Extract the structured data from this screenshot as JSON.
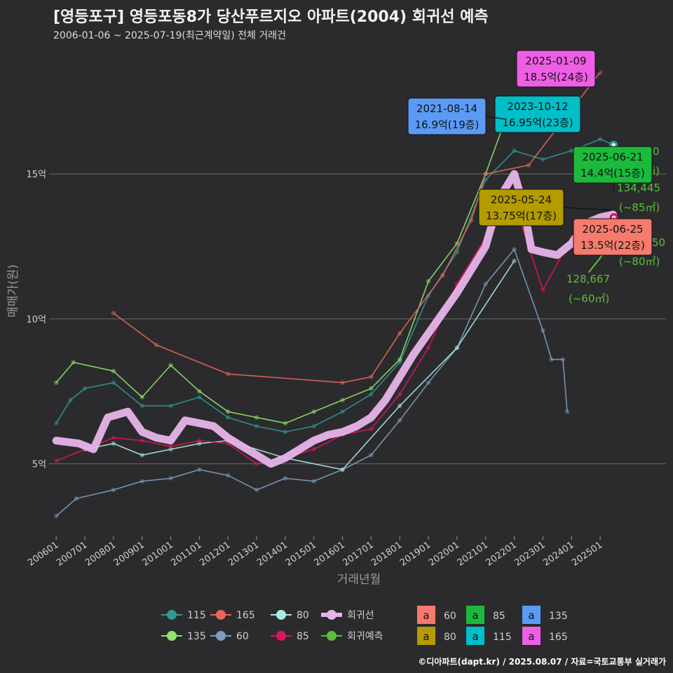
{
  "header": {
    "title": "[영등포구] 영등포동8가 당산푸르지오 아파트(2004) 회귀선 예측",
    "subtitle": "2006-01-06 ~ 2025-07-19(최근계약일) 전체 거래건"
  },
  "caption": "©디아파트(dapt.kr) / 2025.08.07 / 자료=국토교통부 실거래가",
  "colors": {
    "s115": "#2e9a92",
    "s135": "#8fe36e",
    "s165": "#e8675a",
    "s60": "#7f9cc2",
    "s80": "#a8ebe4",
    "s85": "#e0135f",
    "trend": "#e7b4ea",
    "pred": "#5bbf3a"
  },
  "chart_data": {
    "type": "line",
    "xlabel": "거래년월",
    "ylabel": "매매가(원)",
    "x_ticks": [
      "200601",
      "200701",
      "200801",
      "200901",
      "201001",
      "201101",
      "201201",
      "201301",
      "201401",
      "201501",
      "201601",
      "201701",
      "201801",
      "201901",
      "202001",
      "202101",
      "202201",
      "202301",
      "202401",
      "202501"
    ],
    "y_ticks": [
      {
        "value": 5,
        "label": "5억"
      },
      {
        "value": 10,
        "label": "10억"
      },
      {
        "value": 15,
        "label": "15억"
      }
    ],
    "xlim": [
      2005.75,
      2027.3
    ],
    "ylim": [
      2.5,
      19.5
    ],
    "grid": true,
    "series": [
      {
        "name": "115",
        "color_key": "s115",
        "points": [
          [
            2006.0,
            6.4
          ],
          [
            2006.5,
            7.2
          ],
          [
            2007.0,
            7.6
          ],
          [
            2008.0,
            7.8
          ],
          [
            2009.0,
            7.0
          ],
          [
            2010.0,
            7.0
          ],
          [
            2011.0,
            7.3
          ],
          [
            2012.0,
            6.6
          ],
          [
            2013.0,
            6.3
          ],
          [
            2014.0,
            6.1
          ],
          [
            2015.0,
            6.3
          ],
          [
            2016.0,
            6.8
          ],
          [
            2017.0,
            7.4
          ],
          [
            2018.0,
            8.5
          ],
          [
            2019.0,
            10.8
          ],
          [
            2020.0,
            12.3
          ],
          [
            2021.0,
            14.8
          ],
          [
            2022.0,
            15.8
          ],
          [
            2023.0,
            15.5
          ],
          [
            2024.0,
            15.8
          ],
          [
            2025.0,
            16.2
          ],
          [
            2025.47,
            16.0
          ]
        ]
      },
      {
        "name": "135",
        "color_key": "s135",
        "points": [
          [
            2006.0,
            7.8
          ],
          [
            2006.6,
            8.5
          ],
          [
            2008.0,
            8.2
          ],
          [
            2009.0,
            7.3
          ],
          [
            2010.0,
            8.4
          ],
          [
            2011.0,
            7.5
          ],
          [
            2012.0,
            6.8
          ],
          [
            2013.0,
            6.6
          ],
          [
            2014.0,
            6.4
          ],
          [
            2015.0,
            6.8
          ],
          [
            2016.0,
            7.2
          ],
          [
            2017.0,
            7.6
          ],
          [
            2018.0,
            8.6
          ],
          [
            2019.0,
            11.3
          ],
          [
            2020.0,
            12.6
          ],
          [
            2021.0,
            15.0
          ],
          [
            2021.7,
            16.9
          ]
        ]
      },
      {
        "name": "165",
        "color_key": "s165",
        "points": [
          [
            2008.0,
            10.2
          ],
          [
            2009.5,
            9.1
          ],
          [
            2012.0,
            8.1
          ],
          [
            2016.0,
            7.8
          ],
          [
            2017.0,
            8.0
          ],
          [
            2018.0,
            9.5
          ],
          [
            2019.5,
            11.5
          ],
          [
            2020.5,
            13.4
          ],
          [
            2021.0,
            15.0
          ],
          [
            2022.5,
            15.3
          ],
          [
            2025.0,
            18.5
          ]
        ]
      },
      {
        "name": "60",
        "color_key": "s60",
        "points": [
          [
            2006.0,
            3.2
          ],
          [
            2006.7,
            3.8
          ],
          [
            2008.0,
            4.1
          ],
          [
            2009.0,
            4.4
          ],
          [
            2010.0,
            4.5
          ],
          [
            2011.0,
            4.8
          ],
          [
            2012.0,
            4.6
          ],
          [
            2013.0,
            4.1
          ],
          [
            2014.0,
            4.5
          ],
          [
            2015.0,
            4.4
          ],
          [
            2016.0,
            4.8
          ],
          [
            2017.0,
            5.3
          ],
          [
            2018.0,
            6.5
          ],
          [
            2019.0,
            7.8
          ],
          [
            2020.0,
            9.0
          ],
          [
            2021.0,
            11.2
          ],
          [
            2022.0,
            12.4
          ],
          [
            2023.0,
            9.6
          ],
          [
            2023.3,
            8.6
          ],
          [
            2023.7,
            8.6
          ],
          [
            2023.85,
            6.8
          ]
        ]
      },
      {
        "name": "80",
        "color_key": "s80",
        "points": [
          [
            2007.0,
            5.5
          ],
          [
            2008.0,
            5.7
          ],
          [
            2009.0,
            5.3
          ],
          [
            2010.0,
            5.5
          ],
          [
            2011.0,
            5.7
          ],
          [
            2012.0,
            5.8
          ],
          [
            2014.0,
            5.2
          ],
          [
            2016.0,
            4.8
          ],
          [
            2018.0,
            7.0
          ],
          [
            2020.0,
            9.0
          ],
          [
            2022.0,
            12.0
          ]
        ]
      },
      {
        "name": "85",
        "color_key": "s85",
        "points": [
          [
            2006.0,
            5.1
          ],
          [
            2008.0,
            5.9
          ],
          [
            2009.0,
            5.8
          ],
          [
            2010.0,
            5.6
          ],
          [
            2011.0,
            5.8
          ],
          [
            2012.0,
            5.7
          ],
          [
            2013.0,
            5.0
          ],
          [
            2014.0,
            5.2
          ],
          [
            2015.0,
            5.5
          ],
          [
            2016.0,
            6.0
          ],
          [
            2017.0,
            6.2
          ],
          [
            2018.0,
            7.4
          ],
          [
            2019.0,
            9.0
          ],
          [
            2020.0,
            11.2
          ],
          [
            2021.0,
            12.8
          ],
          [
            2022.0,
            14.0
          ],
          [
            2023.0,
            11.0
          ],
          [
            2024.0,
            12.8
          ],
          [
            2025.0,
            13.4
          ],
          [
            2025.48,
            13.5
          ]
        ]
      },
      {
        "name": "회귀선",
        "color_key": "trend",
        "points": [
          [
            2006.0,
            5.8
          ],
          [
            2006.8,
            5.7
          ],
          [
            2007.3,
            5.5
          ],
          [
            2007.8,
            6.6
          ],
          [
            2008.5,
            6.8
          ],
          [
            2009.0,
            6.1
          ],
          [
            2009.5,
            5.9
          ],
          [
            2010.0,
            5.8
          ],
          [
            2010.5,
            6.5
          ],
          [
            2011.0,
            6.4
          ],
          [
            2011.5,
            6.3
          ],
          [
            2012.0,
            5.9
          ],
          [
            2012.5,
            5.6
          ],
          [
            2013.0,
            5.3
          ],
          [
            2013.5,
            5.0
          ],
          [
            2014.0,
            5.2
          ],
          [
            2014.5,
            5.5
          ],
          [
            2015.0,
            5.8
          ],
          [
            2015.5,
            6.0
          ],
          [
            2016.0,
            6.1
          ],
          [
            2016.5,
            6.3
          ],
          [
            2017.0,
            6.6
          ],
          [
            2017.5,
            7.2
          ],
          [
            2018.0,
            8.0
          ],
          [
            2018.5,
            8.8
          ],
          [
            2019.0,
            9.5
          ],
          [
            2019.5,
            10.2
          ],
          [
            2020.0,
            10.9
          ],
          [
            2020.5,
            11.7
          ],
          [
            2021.0,
            12.5
          ],
          [
            2021.5,
            14.2
          ],
          [
            2022.0,
            15.0
          ],
          [
            2022.3,
            14.0
          ],
          [
            2022.6,
            12.4
          ],
          [
            2023.0,
            12.3
          ],
          [
            2023.5,
            12.2
          ],
          [
            2024.0,
            12.6
          ],
          [
            2024.5,
            13.3
          ],
          [
            2025.0,
            13.5
          ],
          [
            2025.45,
            13.6
          ]
        ]
      },
      {
        "name": "회귀예측",
        "color_key": "pred",
        "points": [
          [
            2024.6,
            11.6
          ],
          [
            2025.0,
            12.1
          ],
          [
            2025.45,
            12.8
          ]
        ]
      }
    ],
    "labels": [
      {
        "date": "2025-01-09",
        "price": "18.5억(24층)",
        "fill": "#ee5fe6",
        "area": "165"
      },
      {
        "date": "2023-10-12",
        "price": "16.95억(23층)",
        "fill": "#00bfc8",
        "area": "115"
      },
      {
        "date": "2021-08-14",
        "price": "16.9억(19층)",
        "fill": "#5b9bf5",
        "area": "135"
      },
      {
        "date": "2025-06-21",
        "price": "14.4억(15층)",
        "fill": "#1bba3c",
        "area": "85"
      },
      {
        "date": "2025-05-24",
        "price": "13.75억(17층)",
        "fill": "#b39b00",
        "area": "80"
      },
      {
        "date": "2025-06-25",
        "price": "13.5억(22층)",
        "fill": "#f67a6e",
        "area": "60"
      }
    ],
    "predictions": [
      {
        "price": "134,445",
        "area": "(~85㎡)"
      },
      {
        "price": "128,667",
        "area": "(~60㎡)"
      }
    ],
    "partial_texts": [
      "0",
      "i)",
      "50",
      "(~80㎡)"
    ],
    "legend": {
      "lines": [
        "115",
        "135",
        "165",
        "60",
        "80",
        "85",
        "회귀선",
        "회귀예측"
      ],
      "box_letter": "a",
      "boxes": [
        {
          "label": "60",
          "fill": "#f67a6e"
        },
        {
          "label": "80",
          "fill": "#b39b00"
        },
        {
          "label": "85",
          "fill": "#1bba3c"
        },
        {
          "label": "115",
          "fill": "#00bfc8"
        },
        {
          "label": "135",
          "fill": "#5b9bf5"
        },
        {
          "label": "165",
          "fill": "#ee5fe6"
        }
      ]
    }
  }
}
